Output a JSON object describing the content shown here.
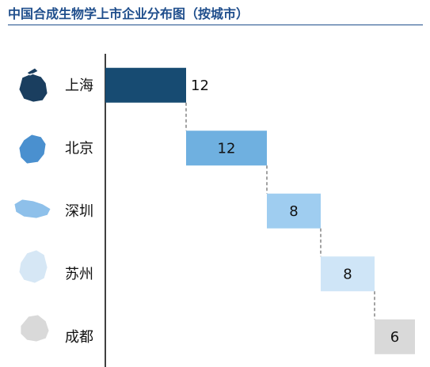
{
  "title": "中国合成生物学上市企业分布图（按城市）",
  "chart_data": {
    "type": "bar",
    "subtype": "waterfall-horizontal",
    "title": "中国合成生物学上市企业分布图（按城市）",
    "categories": [
      "上海",
      "北京",
      "深圳",
      "苏州",
      "成都"
    ],
    "values": [
      12,
      12,
      8,
      8,
      6
    ],
    "xlabel": "",
    "ylabel": "",
    "grid": false,
    "legend": "none",
    "colors": [
      "#174b72",
      "#6fb0e0",
      "#9fcdf0",
      "#cfe5f7",
      "#d9d9d9"
    ],
    "label_colors": [
      "#111111",
      "#111111",
      "#111111",
      "#111111",
      "#111111"
    ],
    "icons": [
      "shanghai-map-icon",
      "beijing-map-icon",
      "shenzhen-map-icon",
      "suzhou-map-icon",
      "chengdu-map-icon"
    ]
  }
}
